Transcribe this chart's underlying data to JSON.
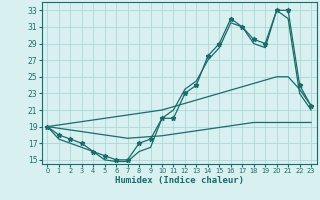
{
  "xlabel": "Humidex (Indice chaleur)",
  "x": [
    0,
    1,
    2,
    3,
    4,
    5,
    6,
    7,
    8,
    9,
    10,
    11,
    12,
    13,
    14,
    15,
    16,
    17,
    18,
    19,
    20,
    21,
    22,
    23
  ],
  "line1": [
    19,
    18,
    17.5,
    17,
    16,
    15.5,
    15,
    15,
    17,
    17.5,
    20,
    20,
    23,
    24,
    27.5,
    29,
    32,
    31,
    29.5,
    29,
    33,
    33,
    24,
    21.5
  ],
  "line2": [
    19,
    17.5,
    17,
    16.5,
    16,
    15,
    14.8,
    14.8,
    16,
    16.5,
    20,
    21,
    23.5,
    24.5,
    27,
    28.5,
    31.5,
    31,
    29,
    28.5,
    33,
    32,
    23,
    21
  ],
  "line3": [
    19,
    19.2,
    19.4,
    19.6,
    19.8,
    20.0,
    20.2,
    20.4,
    20.6,
    20.8,
    21.0,
    21.4,
    21.8,
    22.2,
    22.6,
    23.0,
    23.4,
    23.8,
    24.2,
    24.6,
    25.0,
    25.0,
    23.5,
    21.5
  ],
  "line4": [
    19,
    18.8,
    18.6,
    18.4,
    18.2,
    18.0,
    17.8,
    17.6,
    17.7,
    17.8,
    17.9,
    18.1,
    18.3,
    18.5,
    18.7,
    18.9,
    19.1,
    19.3,
    19.5,
    19.5,
    19.5,
    19.5,
    19.5,
    19.5
  ],
  "line_color": "#1a6b6b",
  "bg_color": "#d8f0ef",
  "grid_color": "#aed8d8",
  "ylim": [
    14.5,
    34
  ],
  "xlim": [
    -0.5,
    23.5
  ],
  "yticks": [
    15,
    17,
    19,
    21,
    23,
    25,
    27,
    29,
    31,
    33
  ],
  "xticks": [
    0,
    1,
    2,
    3,
    4,
    5,
    6,
    7,
    8,
    9,
    10,
    11,
    12,
    13,
    14,
    15,
    16,
    17,
    18,
    19,
    20,
    21,
    22,
    23
  ]
}
